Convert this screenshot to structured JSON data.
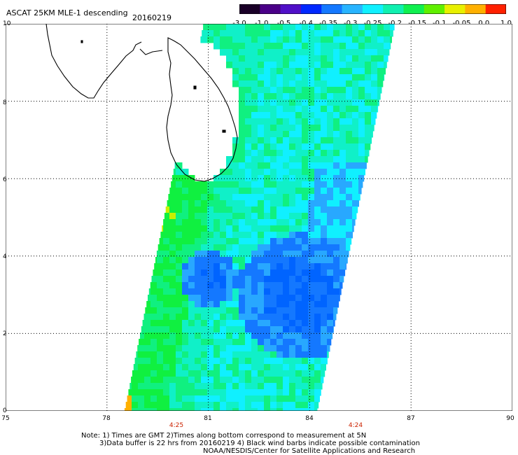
{
  "header": {
    "title": "ASCAT 25KM MLE-1 descending",
    "date": "20160219"
  },
  "colorbar": {
    "labels": [
      "-3.0",
      "-1.0",
      "-0.5",
      "-0.4",
      "-0.35",
      "-0.3",
      "-0.25",
      "-0.2",
      "-0.15",
      "-0.1",
      "-0.05",
      "0.0",
      "1.0"
    ],
    "colors": [
      "#1a0028",
      "#4a0088",
      "#5010c8",
      "#0028ff",
      "#1478ff",
      "#28b4ff",
      "#10f0ff",
      "#10f0b0",
      "#10f050",
      "#60f000",
      "#e8f000",
      "#ffb000",
      "#ff2000"
    ]
  },
  "axes": {
    "x_ticks": [
      "75",
      "78",
      "81",
      "84",
      "87",
      "90"
    ],
    "y_ticks": [
      "0",
      "2",
      "4",
      "6",
      "8",
      "10"
    ],
    "x_range": [
      75,
      90
    ],
    "y_range": [
      0,
      10
    ],
    "grid": "dotted"
  },
  "times": [
    {
      "label": "4:25",
      "lon": 80
    },
    {
      "label": "4:24",
      "lon": 85.3
    }
  ],
  "notes": {
    "line1": "Note: 1) Times are GMT 2)Times along bottom correspond to measurement at 5N",
    "line2": "3)Data buffer is 22 hrs from 20160219 4) Black wind barbs indicate possible contamination",
    "line3": "NOAA/NESDIS/Center for Satellite Applications and Research"
  },
  "map": {
    "landmass": "Sri Lanka and southern India coastline",
    "swath_value_range": "-0.4 to 0.0"
  }
}
